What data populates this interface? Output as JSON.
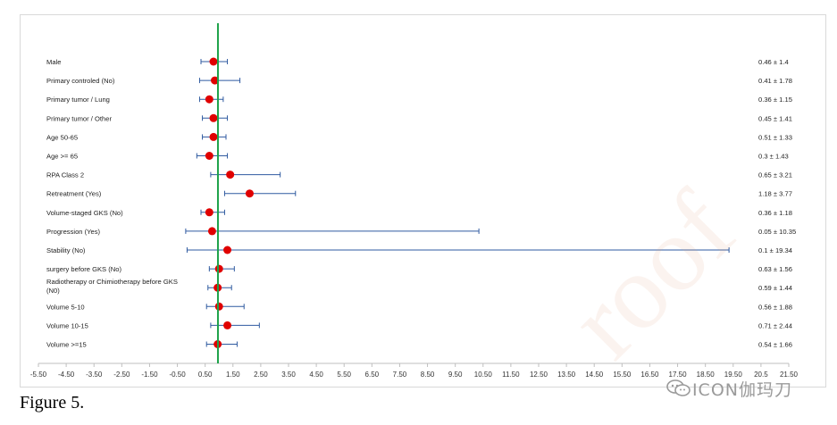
{
  "caption": "Figure 5.",
  "watermark": {
    "channel": "ICON伽玛刀",
    "icon": "wechat-icon",
    "diagonal_text": "roof"
  },
  "colors": {
    "point": "#e00000",
    "whisker": "#2f5aa0",
    "reference": "#1ea34a",
    "axis": "#bfbfbf"
  },
  "chart_data": {
    "type": "forest",
    "title": "",
    "xlabel": "",
    "ylabel": "",
    "reference_line_x": 0.96,
    "xlim": [
      -5.5,
      21.5
    ],
    "x_ticks": [
      -5.5,
      -4.5,
      -3.5,
      -2.5,
      -1.5,
      -0.5,
      0.5,
      1.5,
      2.5,
      3.5,
      4.5,
      5.5,
      6.5,
      7.5,
      8.5,
      9.5,
      10.5,
      11.5,
      12.5,
      13.5,
      14.5,
      15.5,
      16.5,
      17.5,
      18.5,
      19.5,
      20.5,
      21.5
    ],
    "x_tick_labels": [
      "-5.50",
      "-4.50",
      "-3.50",
      "-2.50",
      "-1.50",
      "-0.50",
      "0.50",
      "1.50",
      "2.50",
      "3.50",
      "4.50",
      "5.50",
      "6.50",
      "7.50",
      "8.50",
      "9.50",
      "10.50",
      "11.50",
      "12.50",
      "13.50",
      "14.50",
      "15.50",
      "16.50",
      "17.50",
      "18.50",
      "19.50",
      "20.5",
      "21.50"
    ],
    "rows": [
      {
        "label": [
          "Male"
        ],
        "estimate": 0.8,
        "low": 0.35,
        "high": 1.3,
        "value_text": "0.46 ± 1.4"
      },
      {
        "label": [
          "Primary controled (No)"
        ],
        "estimate": 0.85,
        "low": 0.3,
        "high": 1.75,
        "value_text": "0.41 ± 1.78"
      },
      {
        "label": [
          "Primary tumor / Lung"
        ],
        "estimate": 0.65,
        "low": 0.3,
        "high": 1.15,
        "value_text": "0.36 ± 1.15"
      },
      {
        "label": [
          "Primary tumor / Other"
        ],
        "estimate": 0.8,
        "low": 0.4,
        "high": 1.3,
        "value_text": "0.45 ± 1.41"
      },
      {
        "label": [
          "Age 50-65"
        ],
        "estimate": 0.8,
        "low": 0.4,
        "high": 1.25,
        "value_text": "0.51 ± 1.33"
      },
      {
        "label": [
          "Age >= 65"
        ],
        "estimate": 0.65,
        "low": 0.2,
        "high": 1.3,
        "value_text": "0.3 ± 1.43"
      },
      {
        "label": [
          "RPA Class 2"
        ],
        "estimate": 1.4,
        "low": 0.7,
        "high": 3.2,
        "value_text": "0.65 ± 3.21"
      },
      {
        "label": [
          "Retreatment (Yes)"
        ],
        "estimate": 2.1,
        "low": 1.2,
        "high": 3.75,
        "value_text": "1.18 ± 3.77"
      },
      {
        "label": [
          "Volume-staged GKS (No)"
        ],
        "estimate": 0.65,
        "low": 0.35,
        "high": 1.2,
        "value_text": "0.36 ± 1.18"
      },
      {
        "label": [
          "Progression (Yes)"
        ],
        "estimate": 0.75,
        "low": -0.2,
        "high": 10.35,
        "value_text": "0.05 ± 10.35"
      },
      {
        "label": [
          "Stability (No)"
        ],
        "estimate": 1.3,
        "low": -0.15,
        "high": 19.35,
        "value_text": "0.1 ± 19.34"
      },
      {
        "label": [
          "surgery before GKS (No)"
        ],
        "estimate": 1.0,
        "low": 0.65,
        "high": 1.55,
        "value_text": "0.63 ± 1.56"
      },
      {
        "label": [
          "Radiotherapy or Chimiotherapy before GKS",
          "(N0)"
        ],
        "estimate": 0.95,
        "low": 0.6,
        "high": 1.45,
        "value_text": "0.59 ± 1.44"
      },
      {
        "label": [
          "Volume 5-10"
        ],
        "estimate": 1.0,
        "low": 0.55,
        "high": 1.9,
        "value_text": "0.56 ± 1.88"
      },
      {
        "label": [
          "Volume 10-15"
        ],
        "estimate": 1.3,
        "low": 0.7,
        "high": 2.45,
        "value_text": "0.71 ± 2.44"
      },
      {
        "label": [
          "Volume >=15"
        ],
        "estimate": 0.95,
        "low": 0.55,
        "high": 1.65,
        "value_text": "0.54 ± 1.66"
      }
    ]
  }
}
